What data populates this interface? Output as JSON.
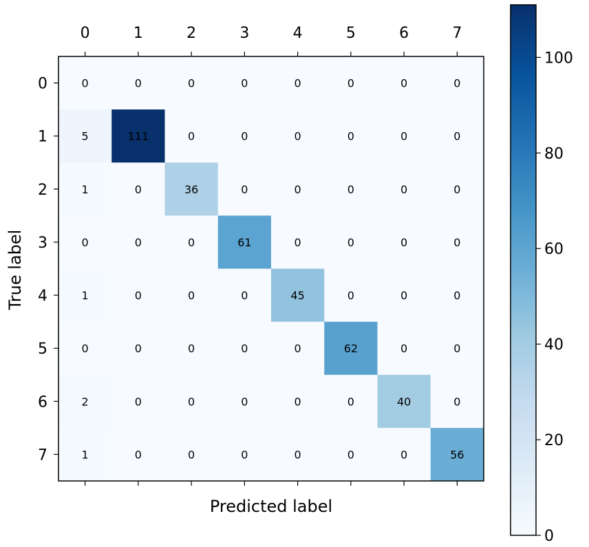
{
  "chart_data": {
    "type": "heatmap",
    "title": "",
    "xlabel": "Predicted label",
    "ylabel": "True label",
    "x_categories": [
      "0",
      "1",
      "2",
      "3",
      "4",
      "5",
      "6",
      "7"
    ],
    "y_categories": [
      "0",
      "1",
      "2",
      "3",
      "4",
      "5",
      "6",
      "7"
    ],
    "values": [
      [
        0,
        0,
        0,
        0,
        0,
        0,
        0,
        0
      ],
      [
        5,
        111,
        0,
        0,
        0,
        0,
        0,
        0
      ],
      [
        1,
        0,
        36,
        0,
        0,
        0,
        0,
        0
      ],
      [
        0,
        0,
        0,
        61,
        0,
        0,
        0,
        0
      ],
      [
        1,
        0,
        0,
        0,
        45,
        0,
        0,
        0
      ],
      [
        0,
        0,
        0,
        0,
        0,
        62,
        0,
        0
      ],
      [
        2,
        0,
        0,
        0,
        0,
        0,
        40,
        0
      ],
      [
        1,
        0,
        0,
        0,
        0,
        0,
        0,
        56
      ]
    ],
    "x_ticks_position": "top",
    "colormap": "Blues",
    "colormap_stops": [
      "#f7fbff",
      "#deebf7",
      "#c6dbef",
      "#9ecae1",
      "#6baed6",
      "#4292c6",
      "#2171b5",
      "#08519c",
      "#08306b"
    ],
    "colorbar": {
      "range": [
        0,
        111
      ],
      "ticks": [
        0,
        20,
        40,
        60,
        80,
        100
      ],
      "tick_labels": [
        "0",
        "20",
        "40",
        "60",
        "80",
        "100"
      ]
    }
  }
}
